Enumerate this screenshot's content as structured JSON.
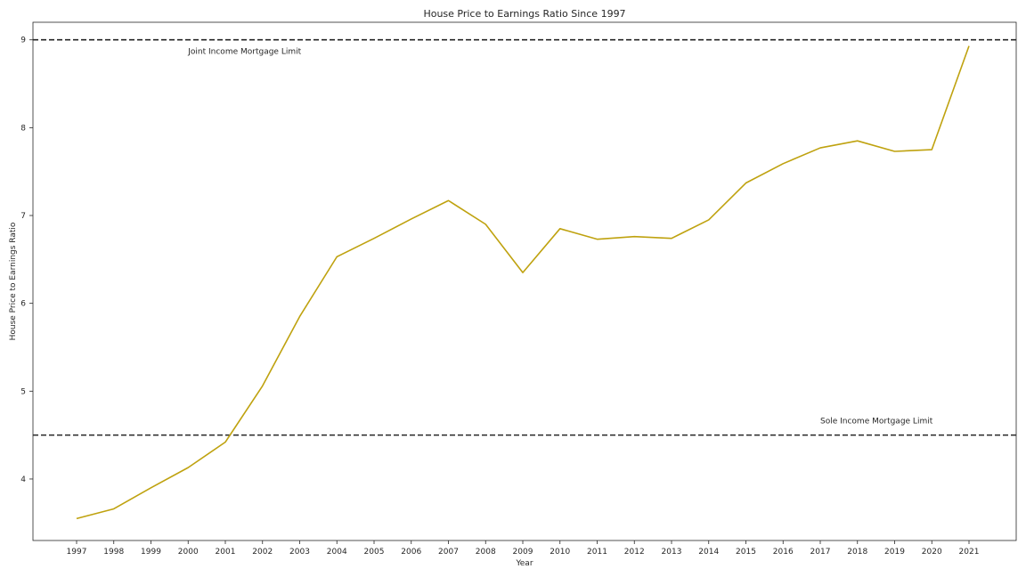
{
  "chart_data": {
    "type": "line",
    "title": "House Price to Earnings Ratio Since 1997",
    "xlabel": "Year",
    "ylabel": "House Price to Earnings Ratio",
    "x": [
      "1997",
      "1998",
      "1999",
      "2000",
      "2001",
      "2002",
      "2003",
      "2004",
      "2005",
      "2006",
      "2007",
      "2008",
      "2009",
      "2010",
      "2011",
      "2012",
      "2013",
      "2014",
      "2015",
      "2016",
      "2017",
      "2018",
      "2019",
      "2020",
      "2021"
    ],
    "yticks": [
      "4",
      "5",
      "6",
      "7",
      "8",
      "9"
    ],
    "ylim": [
      3.3,
      9.2
    ],
    "grid": false,
    "series": [
      {
        "name": "",
        "color": "#bfa20f",
        "values": [
          3.55,
          3.66,
          3.9,
          4.13,
          4.42,
          5.06,
          5.85,
          6.53,
          6.74,
          6.96,
          7.17,
          6.9,
          6.35,
          6.85,
          6.73,
          6.76,
          6.74,
          6.95,
          7.37,
          7.59,
          7.77,
          7.85,
          7.73,
          7.75,
          8.93
        ]
      }
    ],
    "reference_lines": [
      {
        "y": 9.0,
        "style": "dashed",
        "color": "#262626",
        "label": "Joint Income Mortgage Limit",
        "label_x": "2000"
      },
      {
        "y": 4.5,
        "style": "dashed",
        "color": "#262626",
        "label": "Sole Income Mortgage Limit",
        "label_x": "2017"
      }
    ]
  }
}
